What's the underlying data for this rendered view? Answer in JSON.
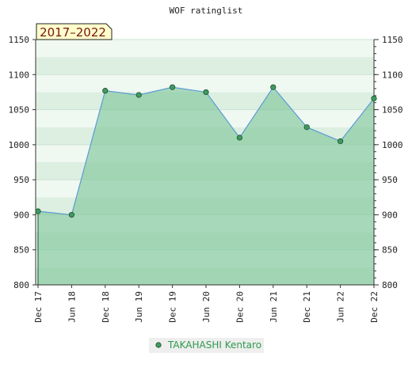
{
  "chart_data": {
    "type": "area",
    "title": "WOF ratinglist",
    "badge": "2017–2022",
    "categories": [
      "Dec 17",
      "Jun 18",
      "Dec 18",
      "Jun 19",
      "Dec 19",
      "Jun 20",
      "Dec 20",
      "Jun 21",
      "Dec 21",
      "Jun 22",
      "Dec 22"
    ],
    "series": [
      {
        "name": "TAKAHASHI Kentaro",
        "values": [
          905,
          900,
          1077,
          1071,
          1082,
          1075,
          1010,
          1082,
          1025,
          1005,
          1066
        ]
      }
    ],
    "ylim": [
      800,
      1150
    ],
    "yticks": [
      800,
      850,
      900,
      950,
      1000,
      1050,
      1100,
      1150
    ],
    "ytick_labels": [
      "800",
      "850",
      "900",
      "950",
      "1000",
      "1050",
      "1100",
      "1150"
    ],
    "xlabel": "",
    "ylabel": "",
    "grid": true,
    "legend": "bottom-center",
    "colors": {
      "band_light": "#dcefe1",
      "band_lighter": "#f0f8f2",
      "fill": "#7cc597",
      "line": "#5b9bd5",
      "marker": "#3f9a5e",
      "legend_text": "#2e9a4e",
      "badge_bg": "#ffffcc"
    }
  }
}
